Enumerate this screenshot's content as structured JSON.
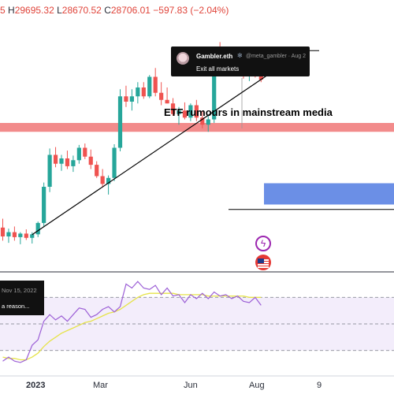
{
  "ohlc": {
    "tail": "5",
    "high_key": "H",
    "high": "29695.32",
    "low_key": "L",
    "low": "28670.52",
    "close_key": "C",
    "close": "28706.01",
    "change": "−597.83 (−2.04%)"
  },
  "tweet": {
    "author": "Gambler.eth",
    "handle_date": "@meta_gambler · Aug 2",
    "text": "Exit all markets",
    "avatar_icon": "avatar-icon",
    "badge_icon": "gear-icon"
  },
  "annotation": "ETF rumours in mainstream media",
  "rsi_tooltip": {
    "date": "Nov 15, 2022",
    "text": "a reason..."
  },
  "x_ticks": [
    "2023",
    "Mar",
    "Jun",
    "Aug",
    "9"
  ],
  "colors": {
    "up": "#26a69a",
    "down": "#ef5350",
    "resistance_band": "#f28b8b",
    "target_box": "#6b8fe6",
    "rsi_line": "#9c5fd6",
    "rsi_ma": "#e6e34a",
    "rsi_band": "#f3edfb"
  },
  "chart_data": [
    {
      "type": "candlestick",
      "series": [
        {
          "name": "",
          "values": [
            [
              29250,
              29500,
              28880,
              29000
            ],
            [
              29000,
              29220,
              28820,
              29120
            ],
            [
              29120,
              29280,
              28880,
              28980
            ],
            [
              28980,
              29120,
              28780,
              29080
            ],
            [
              29080,
              29200,
              28900,
              28960
            ],
            [
              28960,
              29120,
              28800,
              29060
            ],
            [
              29060,
              29420,
              28980,
              29380
            ],
            [
              29380,
              30520,
              29280,
              30400
            ],
            [
              30400,
              31480,
              30250,
              31300
            ],
            [
              31300,
              31520,
              30950,
              31050
            ],
            [
              31050,
              31300,
              30850,
              31200
            ],
            [
              31200,
              31420,
              30900,
              30980
            ],
            [
              30980,
              31280,
              30820,
              31150
            ],
            [
              31150,
              31580,
              31050,
              31500
            ],
            [
              31500,
              31620,
              31180,
              31250
            ],
            [
              31250,
              31450,
              30900,
              31020
            ],
            [
              31020,
              31120,
              30650,
              30700
            ],
            [
              30700,
              30900,
              30380,
              30480
            ],
            [
              30480,
              30720,
              30180,
              30650
            ],
            [
              30650,
              31600,
              30560,
              31500
            ],
            [
              31500,
              33150,
              31400,
              32950
            ],
            [
              32950,
              33250,
              32650,
              32800
            ],
            [
              32800,
              33150,
              32550,
              32950
            ],
            [
              32950,
              33350,
              32750,
              33200
            ],
            [
              33200,
              33350,
              32880,
              32950
            ],
            [
              32950,
              33550,
              32900,
              33500
            ],
            [
              33500,
              33750,
              32950,
              33050
            ],
            [
              33050,
              33350,
              32700,
              32850
            ],
            [
              32850,
              33200,
              32750,
              32750
            ],
            [
              32750,
              32900,
              32400,
              32450
            ],
            [
              32450,
              32650,
              32150,
              32550
            ],
            [
              32550,
              32780,
              32300,
              32350
            ],
            [
              32350,
              32750,
              32250,
              32700
            ],
            [
              32700,
              32850,
              32250,
              32350
            ],
            [
              32350,
              32550,
              32050,
              32150
            ],
            [
              32150,
              32400,
              31950,
              32300
            ],
            [
              32300,
              34300,
              32200,
              34200
            ],
            [
              34200,
              34480,
              33850,
              33950
            ],
            [
              33950,
              34200,
              33700,
              34050
            ],
            [
              34050,
              34350,
              33850,
              33850
            ],
            [
              33850,
              34000,
              33600,
              33700
            ],
            [
              33700,
              33850,
              33450,
              33550
            ],
            [
              33550,
              33800,
              33380,
              33720
            ],
            [
              33720,
              33900,
              33480,
              33580
            ],
            [
              33580,
              33700,
              33350,
              33420
            ]
          ]
        }
      ],
      "xlabel": "",
      "ylabel": "",
      "ylim": [
        28000,
        35000
      ],
      "grid": false,
      "overlays": {
        "resistance_band": [
          31950,
          32200
        ],
        "target_box": [
          29900,
          30500
        ],
        "trendline": {
          "from": [
            5,
            29050
          ],
          "to": [
            46,
            33650
          ]
        },
        "annotation_line_value": 34240,
        "horizontal_level_value": 29760
      }
    },
    {
      "type": "line",
      "series": [
        {
          "name": "",
          "values": [
            22,
            25,
            22,
            21,
            23,
            34,
            38,
            52,
            57,
            53,
            56,
            52,
            57,
            62,
            61,
            55,
            57,
            61,
            63,
            59,
            63,
            80,
            77,
            82,
            77,
            76,
            79,
            72,
            77,
            71,
            72,
            66,
            72,
            69,
            73,
            69,
            74,
            71,
            72,
            69,
            71,
            67,
            66,
            70,
            64
          ]
        },
        {
          "name": "",
          "values": [
            25,
            24,
            24,
            23,
            23,
            25,
            28,
            33,
            37,
            40,
            43,
            45,
            47,
            49,
            51,
            52,
            54,
            56,
            58,
            59,
            61,
            64,
            67,
            70,
            72,
            73,
            73,
            73,
            73,
            73,
            72,
            72,
            72,
            72,
            72,
            71,
            71,
            71,
            71,
            71,
            71,
            71,
            70,
            70,
            70
          ]
        }
      ],
      "ylim": [
        15,
        85
      ],
      "band": [
        30,
        70
      ],
      "xlabel": "",
      "ylabel": ""
    }
  ]
}
